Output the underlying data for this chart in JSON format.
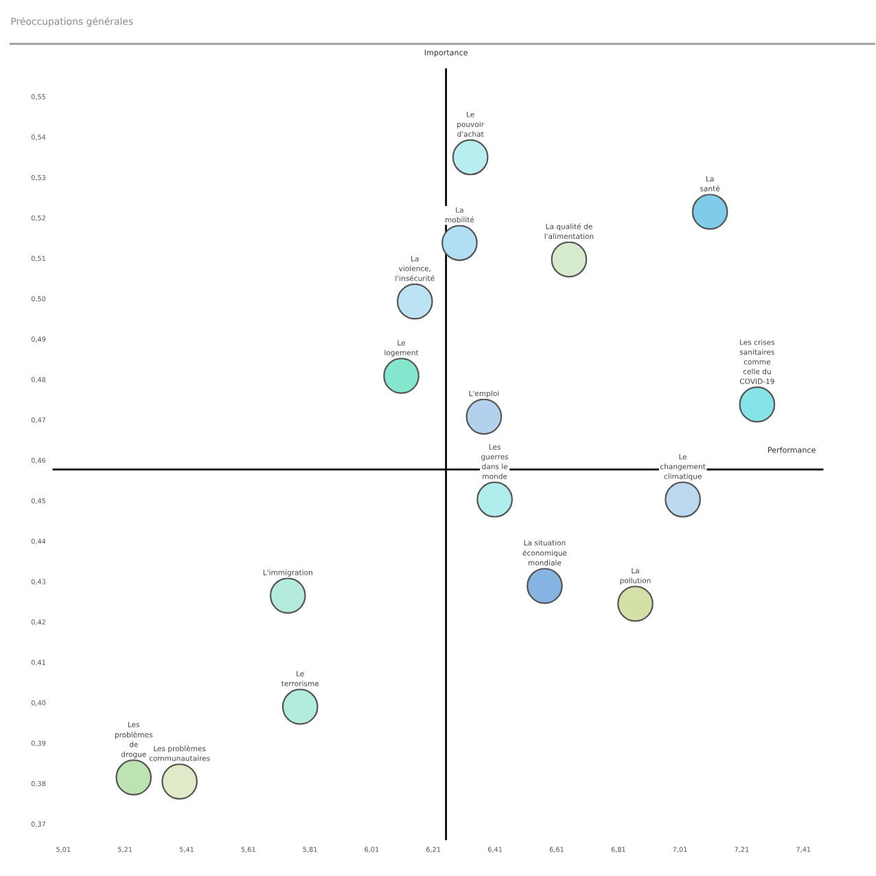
{
  "chart_data": {
    "type": "scatter",
    "title": "Préoccupations générales",
    "xlim": [
      4.975,
      7.475
    ],
    "ylim": [
      0.366,
      0.557
    ],
    "xticks": [
      {
        "value": 5.01,
        "label": "5,01"
      },
      {
        "value": 5.21,
        "label": "5,21"
      },
      {
        "value": 5.41,
        "label": "5,41"
      },
      {
        "value": 5.61,
        "label": "5,61"
      },
      {
        "value": 5.81,
        "label": "5,81"
      },
      {
        "value": 6.01,
        "label": "6,01"
      },
      {
        "value": 6.21,
        "label": "6,21"
      },
      {
        "value": 6.41,
        "label": "6,41"
      },
      {
        "value": 6.61,
        "label": "6,61"
      },
      {
        "value": 6.81,
        "label": "6,81"
      },
      {
        "value": 7.01,
        "label": "7,01"
      },
      {
        "value": 7.21,
        "label": "7,21"
      },
      {
        "value": 7.41,
        "label": "7,41"
      }
    ],
    "yticks": [
      {
        "value": 0.37,
        "label": "0,37"
      },
      {
        "value": 0.38,
        "label": "0,38"
      },
      {
        "value": 0.39,
        "label": "0,39"
      },
      {
        "value": 0.4,
        "label": "0,40"
      },
      {
        "value": 0.41,
        "label": "0,41"
      },
      {
        "value": 0.42,
        "label": "0,42"
      },
      {
        "value": 0.43,
        "label": "0,43"
      },
      {
        "value": 0.44,
        "label": "0,44"
      },
      {
        "value": 0.45,
        "label": "0,45"
      },
      {
        "value": 0.46,
        "label": "0,46"
      },
      {
        "value": 0.47,
        "label": "0,47"
      },
      {
        "value": 0.48,
        "label": "0,48"
      },
      {
        "value": 0.49,
        "label": "0,49"
      },
      {
        "value": 0.5,
        "label": "0,50"
      },
      {
        "value": 0.51,
        "label": "0,51"
      },
      {
        "value": 0.52,
        "label": "0,52"
      },
      {
        "value": 0.53,
        "label": "0,53"
      },
      {
        "value": 0.54,
        "label": "0,54"
      },
      {
        "value": 0.55,
        "label": "0,55"
      }
    ],
    "grid": false,
    "legend": false,
    "marker": "circle",
    "series": [
      {
        "x": [
          6.33,
          7.107,
          6.295,
          6.65,
          6.15,
          6.106,
          6.374,
          7.26,
          6.409,
          7.019,
          6.571,
          6.865,
          5.738,
          5.778,
          5.238,
          5.387
        ],
        "values": [
          0.535,
          0.5215,
          0.5138,
          0.5097,
          0.4993,
          0.4809,
          0.4708,
          0.4738,
          0.4503,
          0.4503,
          0.4289,
          0.4245,
          0.4265,
          0.399,
          0.3815,
          0.3805
        ],
        "colors": [
          "#b8eef0",
          "#7ecbea",
          "#b0def2",
          "#d6ebcc",
          "#bce3f3",
          "#84e6cc",
          "#b3d1ec",
          "#84e4e8",
          "#b0eeee",
          "#bcd7ee",
          "#85b4e3",
          "#d3e0a6",
          "#b5eadf",
          "#b2ecdc",
          "#bde3b3",
          "#e0e9c8"
        ]
      }
    ],
    "annotations": [
      {
        "text": "Le\npouvoir\nd'achat",
        "x": 6.33,
        "y": 0.535
      },
      {
        "text": "La\nsanté",
        "x": 7.107,
        "y": 0.5215
      },
      {
        "text": "La\nmobilité",
        "x": 6.295,
        "y": 0.5138
      },
      {
        "text": "La qualité de\nl'alimentation",
        "x": 6.65,
        "y": 0.5097
      },
      {
        "text": "La\nviolence,\nl'insécurité",
        "x": 6.15,
        "y": 0.4993
      },
      {
        "text": "Le\nlogement",
        "x": 6.106,
        "y": 0.4809
      },
      {
        "text": "L'emploi",
        "x": 6.374,
        "y": 0.4708
      },
      {
        "text": "Les crises\nsanitaires\ncomme\ncelle du\nCOVID-19",
        "x": 7.26,
        "y": 0.4738
      },
      {
        "text": "Les\nguerres\ndans le\nmonde",
        "x": 6.409,
        "y": 0.4503
      },
      {
        "text": "Le\nchangement\nclimatique",
        "x": 7.019,
        "y": 0.4503
      },
      {
        "text": "La situation\néconomique\nmondiale",
        "x": 6.571,
        "y": 0.4289
      },
      {
        "text": "La\npollution",
        "x": 6.865,
        "y": 0.4245
      },
      {
        "text": "L'immigration",
        "x": 5.738,
        "y": 0.4265
      },
      {
        "text": "Le\nterrorisme",
        "x": 5.778,
        "y": 0.399
      },
      {
        "text": "Les\nproblèmes\nde\ndrogue",
        "x": 5.238,
        "y": 0.3815
      },
      {
        "text": "Les problèmes\ncommunautaires",
        "x": 5.387,
        "y": 0.3805
      }
    ],
    "ref_lines": [
      {
        "axis": "x",
        "value": 6.251,
        "label": "Importance",
        "color": "#000000"
      },
      {
        "axis": "y",
        "value": 0.4577,
        "label": "Performance",
        "color": "#000000"
      }
    ]
  }
}
